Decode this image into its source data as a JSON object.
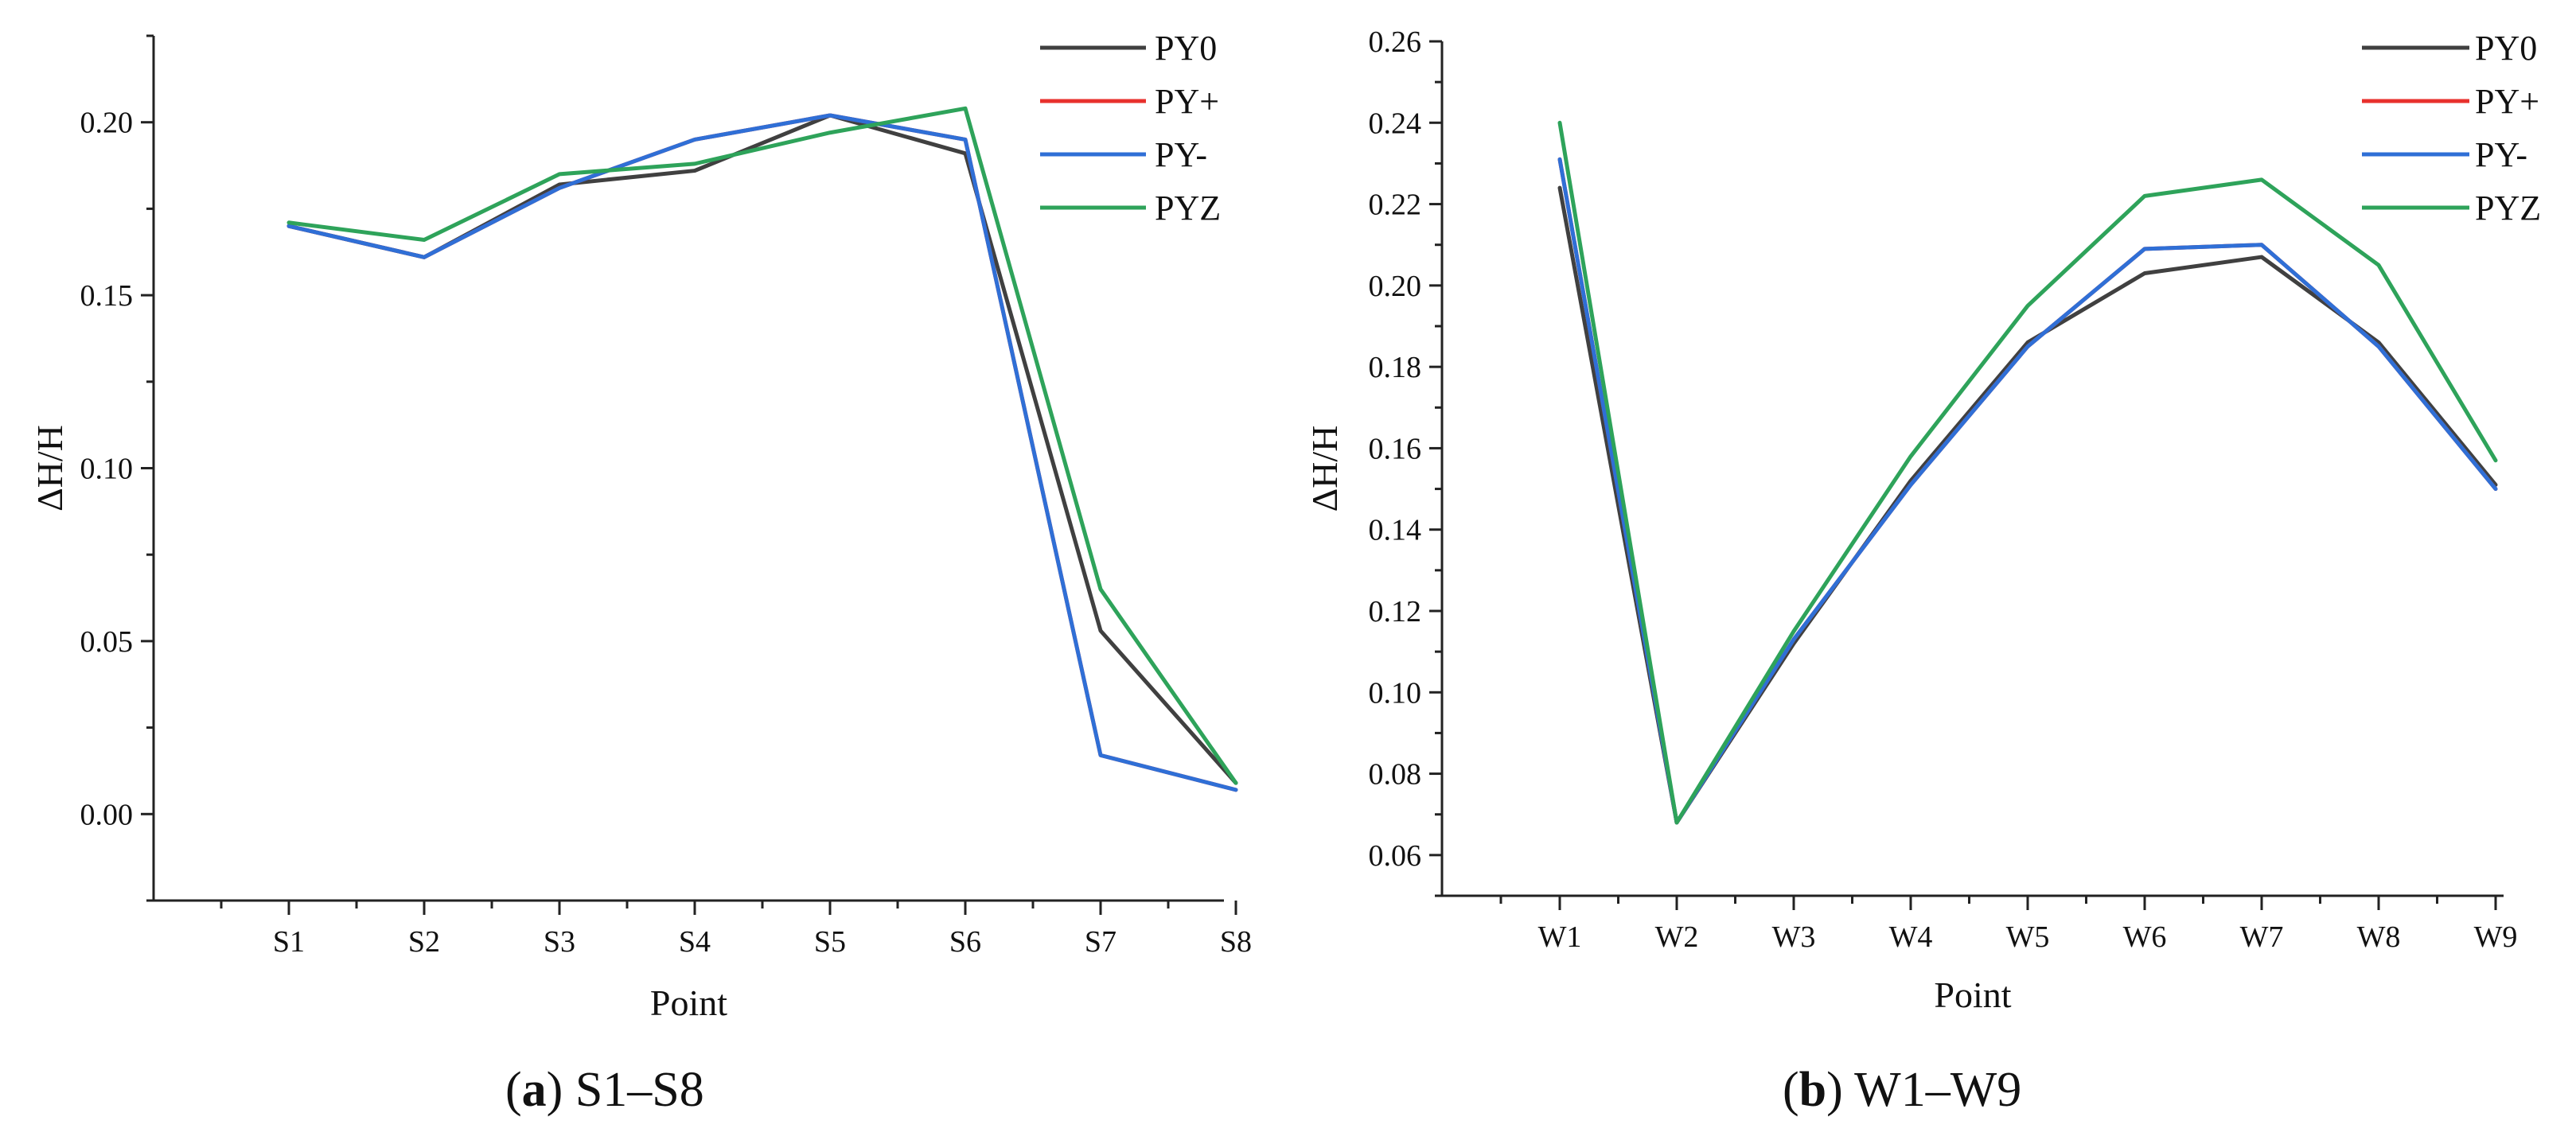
{
  "chart_data": [
    {
      "type": "line",
      "panel": "a",
      "caption_letter": "a",
      "caption_text": "S1–S8",
      "xlabel": "Point",
      "ylabel": "ΔH/H",
      "categories": [
        "S1",
        "S2",
        "S3",
        "S4",
        "S5",
        "S6",
        "S7",
        "S8"
      ],
      "ylim": [
        -0.025,
        0.225
      ],
      "yticks": [
        0.0,
        0.05,
        0.1,
        0.15,
        0.2
      ],
      "ytick_labels": [
        "0.00",
        "0.05",
        "0.10",
        "0.15",
        "0.20"
      ],
      "legend_position": "top-right",
      "series": [
        {
          "name": "PY0",
          "color": "#404040",
          "values": [
            0.17,
            0.161,
            0.182,
            0.186,
            0.202,
            0.191,
            0.053,
            0.009
          ]
        },
        {
          "name": "PY+",
          "color": "#e8312d",
          "values": [
            0.17,
            0.161,
            0.181,
            0.195,
            0.202,
            0.195,
            0.017,
            0.007
          ]
        },
        {
          "name": "PY-",
          "color": "#2f6fd6",
          "values": [
            0.17,
            0.161,
            0.181,
            0.195,
            0.202,
            0.195,
            0.017,
            0.007
          ]
        },
        {
          "name": "PYZ",
          "color": "#2ea35a",
          "values": [
            0.171,
            0.166,
            0.185,
            0.188,
            0.197,
            0.204,
            0.065,
            0.009
          ]
        }
      ]
    },
    {
      "type": "line",
      "panel": "b",
      "caption_letter": "b",
      "caption_text": "W1–W9",
      "xlabel": "Point",
      "ylabel": "ΔH/H",
      "categories": [
        "W1",
        "W2",
        "W3",
        "W4",
        "W5",
        "W6",
        "W7",
        "W8",
        "W9"
      ],
      "ylim": [
        0.05,
        0.26
      ],
      "yticks": [
        0.06,
        0.08,
        0.1,
        0.12,
        0.14,
        0.16,
        0.18,
        0.2,
        0.22,
        0.24,
        0.26
      ],
      "ytick_labels": [
        "0.06",
        "0.08",
        "0.10",
        "0.12",
        "0.14",
        "0.16",
        "0.18",
        "0.20",
        "0.22",
        "0.24",
        "0.26"
      ],
      "legend_position": "top-right",
      "series": [
        {
          "name": "PY0",
          "color": "#404040",
          "values": [
            0.224,
            0.068,
            0.112,
            0.152,
            0.186,
            0.203,
            0.207,
            0.186,
            0.151
          ]
        },
        {
          "name": "PY+",
          "color": "#e8312d",
          "values": [
            0.231,
            0.068,
            0.113,
            0.151,
            0.185,
            0.209,
            0.21,
            0.185,
            0.15
          ]
        },
        {
          "name": "PY-",
          "color": "#2f6fd6",
          "values": [
            0.231,
            0.068,
            0.113,
            0.151,
            0.185,
            0.209,
            0.21,
            0.185,
            0.15
          ]
        },
        {
          "name": "PYZ",
          "color": "#2ea35a",
          "values": [
            0.24,
            0.068,
            0.115,
            0.158,
            0.195,
            0.222,
            0.226,
            0.205,
            0.157
          ]
        }
      ]
    }
  ]
}
